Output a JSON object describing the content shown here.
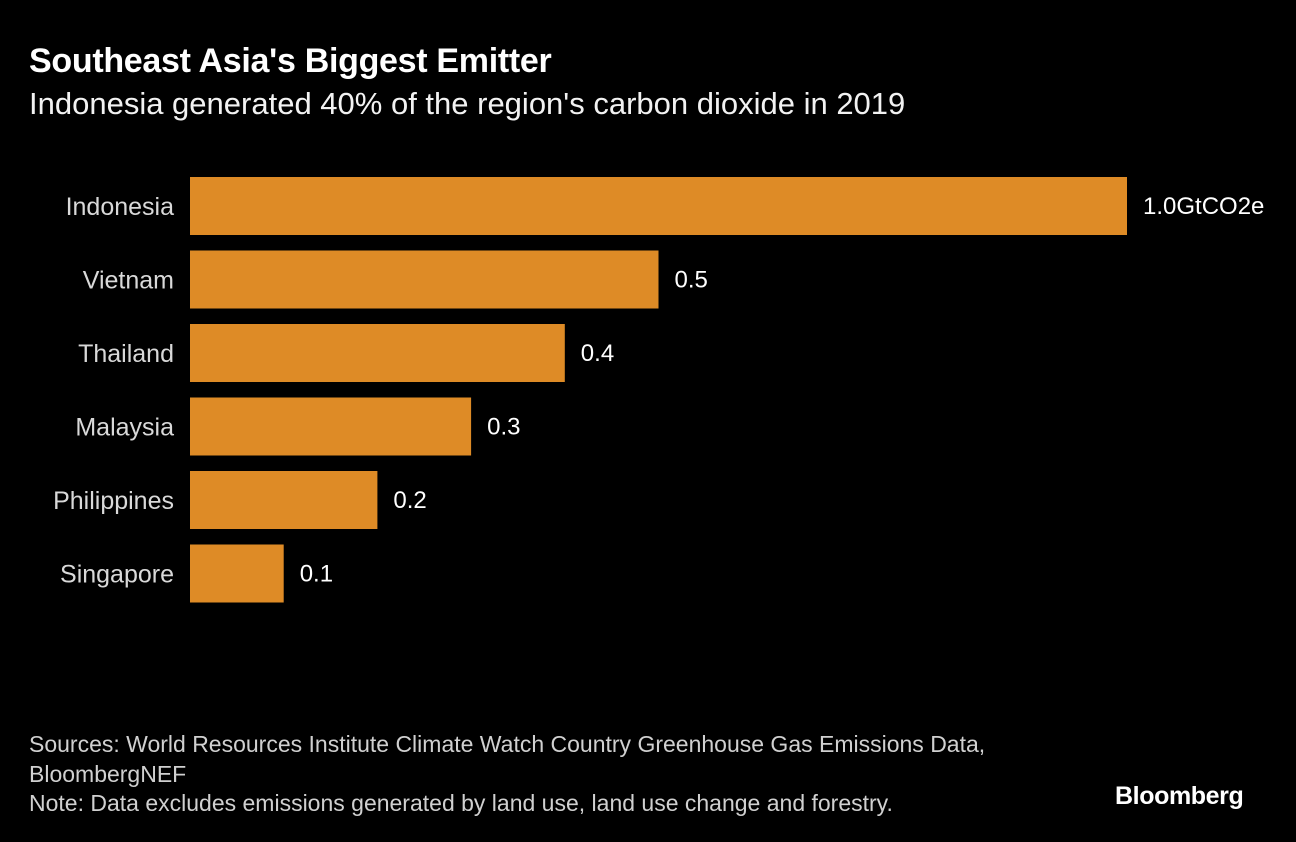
{
  "header": {
    "title": "Southeast Asia's Biggest Emitter",
    "subtitle": "Indonesia generated 40% of the region's carbon dioxide in 2019"
  },
  "chart_data": {
    "type": "bar",
    "orientation": "horizontal",
    "title": "Southeast Asia's Biggest Emitter",
    "subtitle": "Indonesia generated 40% of the region's carbon dioxide in 2019",
    "categories": [
      "Indonesia",
      "Vietnam",
      "Thailand",
      "Malaysia",
      "Philippines",
      "Singapore"
    ],
    "values": [
      1.0,
      0.5,
      0.4,
      0.3,
      0.2,
      0.1
    ],
    "value_labels": [
      "1.0GtCO2e",
      "0.5",
      "0.4",
      "0.3",
      "0.2",
      "0.1"
    ],
    "unit": "GtCO2e",
    "xlim": [
      0,
      1.0
    ],
    "grid": false,
    "bar_color": "#de8b26"
  },
  "footer": {
    "sources": "Sources: World Resources Institute Climate Watch Country Greenhouse Gas Emissions Data, BloombergNEF",
    "note": "Note: Data excludes emissions generated by land use, land use change and forestry."
  },
  "brand": "Bloomberg",
  "colors": {
    "background": "#000000",
    "bar": "#de8b26",
    "text": "#ffffff"
  }
}
